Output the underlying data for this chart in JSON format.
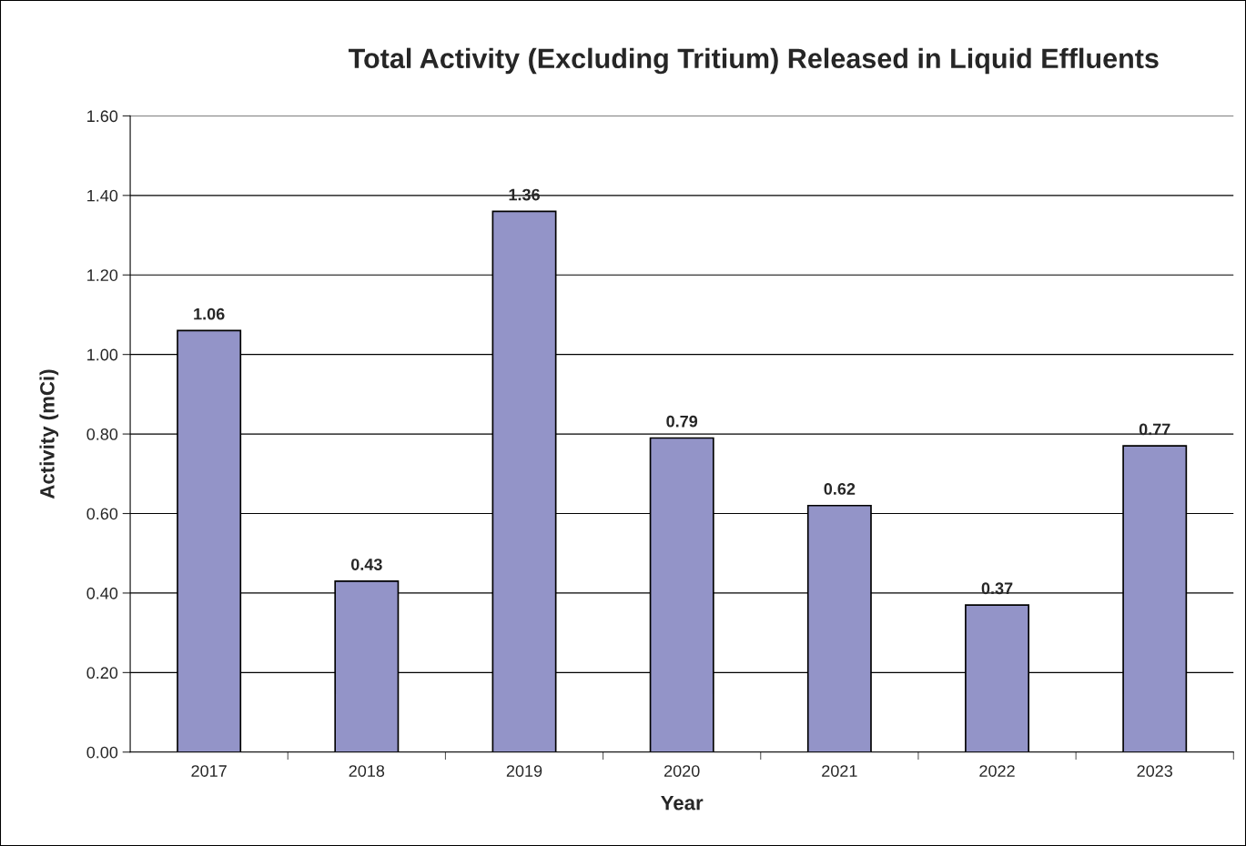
{
  "chart_data": {
    "type": "bar",
    "title": "Total Activity (Excluding Tritium) Released in Liquid Effluents",
    "xlabel": "Year",
    "ylabel": "Activity (mCi)",
    "categories": [
      "2017",
      "2018",
      "2019",
      "2020",
      "2021",
      "2022",
      "2023"
    ],
    "values": [
      1.06,
      0.43,
      1.36,
      0.79,
      0.62,
      0.37,
      0.77
    ],
    "color": "#9394c8",
    "ylim": [
      0,
      1.6
    ],
    "yticks": [
      {
        "value": 0,
        "label": "0.00"
      },
      {
        "value": 0.2,
        "label": "0.20"
      },
      {
        "value": 0.4,
        "label": "0.40"
      },
      {
        "value": 0.6,
        "label": "0.60"
      },
      {
        "value": 0.8,
        "label": "0.80"
      },
      {
        "value": 1.0,
        "label": "1.00"
      },
      {
        "value": 1.2,
        "label": "1.20"
      },
      {
        "value": 1.4,
        "label": "1.40"
      },
      {
        "value": 1.6,
        "label": "1.60"
      }
    ],
    "grid": "y",
    "data_labels": true,
    "legend": false
  }
}
